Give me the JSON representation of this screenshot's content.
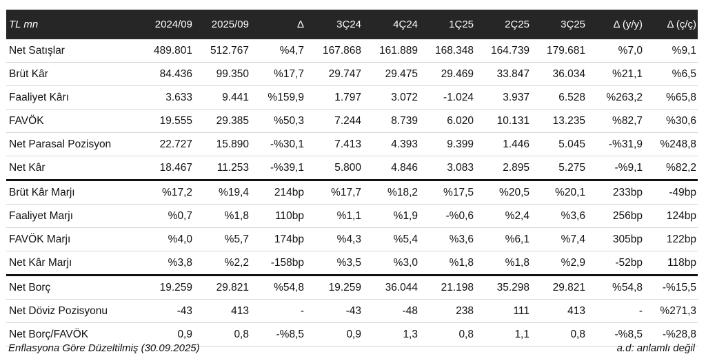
{
  "header": [
    "TL mn",
    "2024/09",
    "2025/09",
    "Δ",
    "3Ç24",
    "4Ç24",
    "1Ç25",
    "2Ç25",
    "3Ç25",
    "Δ (y/y)",
    "Δ (ç/ç)"
  ],
  "rows": [
    [
      "Net Satışlar",
      "489.801",
      "512.767",
      "%4,7",
      "167.868",
      "161.889",
      "168.348",
      "164.739",
      "179.681",
      "%7,0",
      "%9,1"
    ],
    [
      "Brüt Kâr",
      "84.436",
      "99.350",
      "%17,7",
      "29.747",
      "29.475",
      "29.469",
      "33.847",
      "36.034",
      "%21,1",
      "%6,5"
    ],
    [
      "Faaliyet Kârı",
      "3.633",
      "9.441",
      "%159,9",
      "1.797",
      "3.072",
      "-1.024",
      "3.937",
      "6.528",
      "%263,2",
      "%65,8"
    ],
    [
      "FAVÖK",
      "19.555",
      "29.385",
      "%50,3",
      "7.244",
      "8.739",
      "6.020",
      "10.131",
      "13.235",
      "%82,7",
      "%30,6"
    ],
    [
      "Net Parasal Pozisyon",
      "22.727",
      "15.890",
      "-%30,1",
      "7.413",
      "4.393",
      "9.399",
      "1.446",
      "5.045",
      "-%31,9",
      "%248,8"
    ],
    [
      "Net Kâr",
      "18.467",
      "11.253",
      "-%39,1",
      "5.800",
      "4.846",
      "3.083",
      "2.895",
      "5.275",
      "-%9,1",
      "%82,2"
    ],
    [
      "Brüt Kâr Marjı",
      "%17,2",
      "%19,4",
      "214bp",
      "%17,7",
      "%18,2",
      "%17,5",
      "%20,5",
      "%20,1",
      "233bp",
      "-49bp"
    ],
    [
      "Faaliyet Marjı",
      "%0,7",
      "%1,8",
      "110bp",
      "%1,1",
      "%1,9",
      "-%0,6",
      "%2,4",
      "%3,6",
      "256bp",
      "124bp"
    ],
    [
      "FAVÖK Marjı",
      "%4,0",
      "%5,7",
      "174bp",
      "%4,3",
      "%5,4",
      "%3,6",
      "%6,1",
      "%7,4",
      "305bp",
      "122bp"
    ],
    [
      "Net Kâr Marjı",
      "%3,8",
      "%2,2",
      "-158bp",
      "%3,5",
      "%3,0",
      "%1,8",
      "%1,8",
      "%2,9",
      "-52bp",
      "118bp"
    ],
    [
      "Net Borç",
      "19.259",
      "29.821",
      "%54,8",
      "19.259",
      "36.044",
      "21.198",
      "35.298",
      "29.821",
      "%54,8",
      "-%15,5"
    ],
    [
      "Net Döviz Pozisyonu",
      "-43",
      "413",
      "-",
      "-43",
      "-48",
      "238",
      "111",
      "413",
      "-",
      "%271,3"
    ],
    [
      "Net Borç/FAVÖK",
      "0,9",
      "0,8",
      "-%8,5",
      "0,9",
      "1,3",
      "0,8",
      "1,1",
      "0,8",
      "-%8,5",
      "-%28,8"
    ]
  ],
  "footer": {
    "left": "Enflasyona Göre Düzeltilmiş (30.09.2025)",
    "right": "a.d: anlamlı değil"
  },
  "colors": {
    "header_bg": "#262626",
    "header_text": "#ffffff",
    "section_rule": "#111111"
  }
}
